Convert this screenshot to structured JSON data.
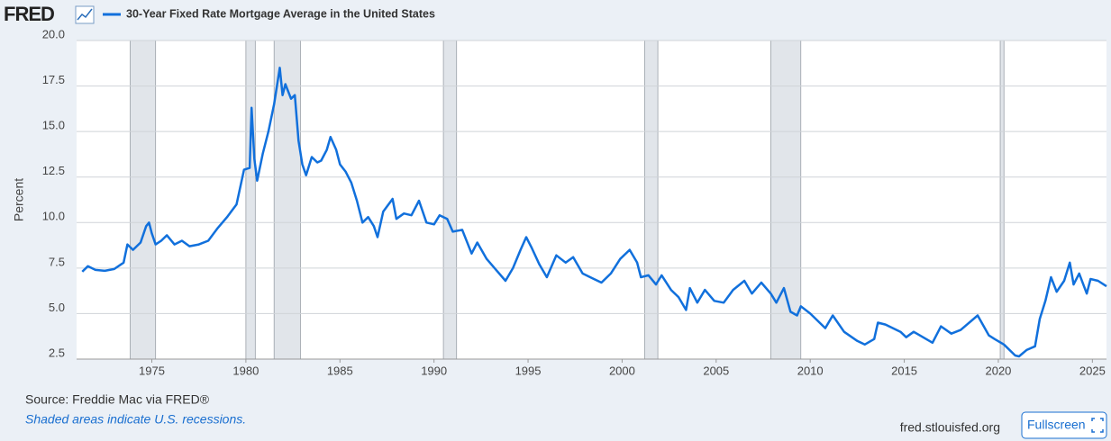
{
  "logo": "FRED",
  "chart_data": {
    "type": "line",
    "series": [
      {
        "name": "30-Year Fixed Rate Mortgage Average in the United States",
        "color": "#1170dc",
        "x": [
          1971.3,
          1971.6,
          1972.0,
          1972.5,
          1973.0,
          1973.5,
          1973.7,
          1974.0,
          1974.4,
          1974.7,
          1974.85,
          1975.0,
          1975.2,
          1975.5,
          1975.8,
          1976.2,
          1976.6,
          1977.0,
          1977.5,
          1978.0,
          1978.5,
          1979.0,
          1979.5,
          1979.9,
          1980.2,
          1980.3,
          1980.45,
          1980.6,
          1980.9,
          1981.2,
          1981.5,
          1981.8,
          1981.95,
          1982.1,
          1982.4,
          1982.6,
          1982.8,
          1983.0,
          1983.2,
          1983.5,
          1983.8,
          1984.0,
          1984.3,
          1984.5,
          1984.8,
          1985.0,
          1985.3,
          1985.6,
          1985.9,
          1986.2,
          1986.5,
          1986.8,
          1987.0,
          1987.3,
          1987.8,
          1988.0,
          1988.4,
          1988.8,
          1989.2,
          1989.6,
          1990.0,
          1990.3,
          1990.7,
          1991.0,
          1991.5,
          1992.0,
          1992.3,
          1992.8,
          1993.3,
          1993.8,
          1994.2,
          1994.6,
          1994.9,
          1995.2,
          1995.6,
          1996.0,
          1996.5,
          1997.0,
          1997.4,
          1997.9,
          1998.5,
          1998.9,
          1999.4,
          1999.9,
          2000.4,
          2000.8,
          2001.0,
          2001.4,
          2001.8,
          2002.1,
          2002.6,
          2003.0,
          2003.4,
          2003.6,
          2004.0,
          2004.4,
          2004.9,
          2005.4,
          2005.9,
          2006.5,
          2006.9,
          2007.4,
          2007.9,
          2008.2,
          2008.6,
          2008.95,
          2009.3,
          2009.5,
          2010.0,
          2010.8,
          2011.2,
          2011.8,
          2012.5,
          2012.9,
          2013.4,
          2013.6,
          2014.0,
          2014.8,
          2015.1,
          2015.5,
          2016.5,
          2016.95,
          2017.5,
          2018.0,
          2018.9,
          2019.5,
          2019.8,
          2020.3,
          2020.9,
          2021.1,
          2021.5,
          2021.95,
          2022.2,
          2022.5,
          2022.8,
          2023.1,
          2023.5,
          2023.8,
          2024.0,
          2024.3,
          2024.7,
          2024.9,
          2025.3,
          2025.6,
          2025.75
        ],
        "values": [
          7.3,
          7.6,
          7.4,
          7.35,
          7.45,
          7.8,
          8.8,
          8.5,
          8.9,
          9.8,
          10.0,
          9.4,
          8.8,
          9.0,
          9.3,
          8.8,
          9.0,
          8.7,
          8.8,
          9.0,
          9.7,
          10.3,
          11.0,
          12.9,
          13.0,
          16.3,
          13.5,
          12.3,
          13.8,
          15.0,
          16.5,
          18.5,
          17.0,
          17.6,
          16.8,
          17.0,
          14.5,
          13.2,
          12.6,
          13.6,
          13.3,
          13.4,
          14.0,
          14.7,
          14.0,
          13.2,
          12.8,
          12.2,
          11.2,
          10.0,
          10.3,
          9.8,
          9.2,
          10.6,
          11.3,
          10.2,
          10.5,
          10.4,
          11.2,
          10.0,
          9.9,
          10.4,
          10.2,
          9.5,
          9.6,
          8.3,
          8.9,
          8.0,
          7.4,
          6.8,
          7.5,
          8.5,
          9.2,
          8.6,
          7.7,
          7.0,
          8.2,
          7.8,
          8.1,
          7.2,
          6.9,
          6.7,
          7.2,
          8.0,
          8.5,
          7.8,
          7.0,
          7.1,
          6.6,
          7.1,
          6.3,
          5.9,
          5.2,
          6.4,
          5.6,
          6.3,
          5.7,
          5.6,
          6.3,
          6.8,
          6.1,
          6.7,
          6.1,
          5.6,
          6.4,
          5.1,
          4.9,
          5.4,
          5.0,
          4.2,
          4.9,
          4.0,
          3.5,
          3.3,
          3.6,
          4.5,
          4.4,
          4.0,
          3.7,
          4.0,
          3.4,
          4.3,
          3.9,
          4.1,
          4.9,
          3.8,
          3.6,
          3.3,
          2.7,
          2.65,
          3.0,
          3.2,
          4.7,
          5.7,
          7.0,
          6.2,
          6.8,
          7.8,
          6.6,
          7.2,
          6.1,
          6.9,
          6.8,
          6.6,
          6.5
        ]
      }
    ],
    "recessions": [
      [
        1973.85,
        1975.2
      ],
      [
        1980.0,
        1980.5
      ],
      [
        1981.5,
        1982.9
      ],
      [
        1990.5,
        1991.2
      ],
      [
        2001.2,
        2001.9
      ],
      [
        2007.9,
        2009.5
      ],
      [
        2020.1,
        2020.3
      ]
    ],
    "xlim": [
      1971.0,
      2025.75
    ],
    "xticks": [
      1975,
      1980,
      1985,
      1990,
      1995,
      2000,
      2005,
      2010,
      2015,
      2020,
      2025
    ],
    "ylim": [
      2.5,
      20
    ],
    "yticks": [
      {
        "value": 2.5,
        "label": "2.5"
      },
      {
        "value": 5,
        "label": "5.0"
      },
      {
        "value": 7.5,
        "label": "7.5"
      },
      {
        "value": 10,
        "label": "10.0"
      },
      {
        "value": 12.5,
        "label": "12.5"
      },
      {
        "value": 15,
        "label": "15.0"
      },
      {
        "value": 17.5,
        "label": "17.5"
      },
      {
        "value": 20,
        "label": "20.0"
      }
    ],
    "ylabel": "Percent",
    "grid": true,
    "source": "Source: Freddie Mac via FRED®",
    "note": "Shaded areas indicate U.S. recessions.",
    "site": "fred.stlouisfed.org",
    "button": "Fullscreen"
  }
}
